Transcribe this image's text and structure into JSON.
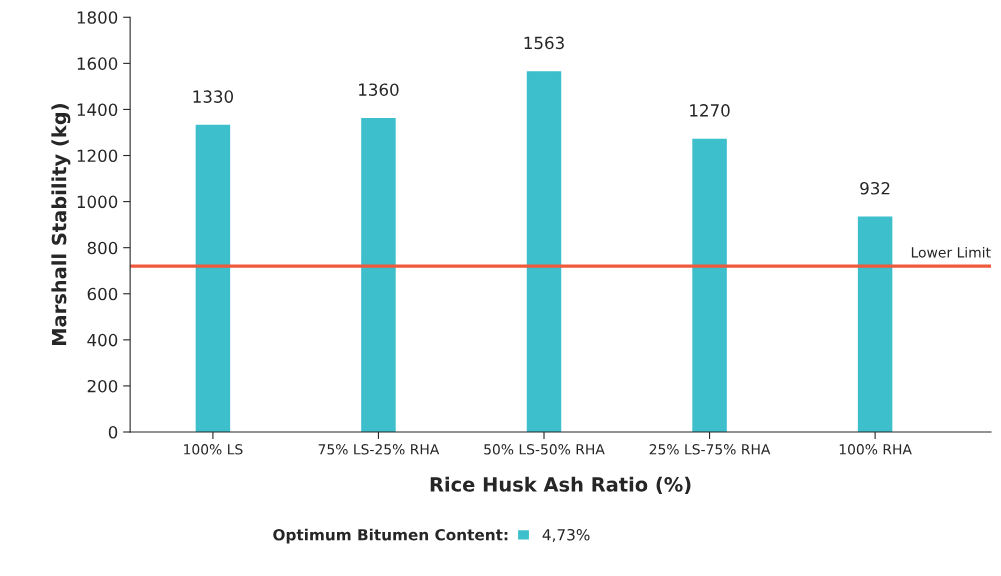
{
  "chart_data": {
    "type": "bar",
    "categories": [
      "100% LS",
      "75% LS-25% RHA",
      "50% LS-50% RHA",
      "25% LS-75% RHA",
      "100% RHA"
    ],
    "series": [
      {
        "name": "4,73%",
        "color": "#3dbfcc",
        "values": [
          1330,
          1360,
          1563,
          1270,
          932
        ]
      }
    ],
    "xlabel": "Rice Husk Ash Ratio (%)",
    "ylabel": "Marshall Stability (kg)",
    "legend_title": "Optimum Bitumen Content:",
    "legend": "bottom",
    "ylim": [
      0,
      1800
    ],
    "yticks": [
      0,
      200,
      400,
      600,
      800,
      1000,
      1200,
      1400,
      1600,
      1800
    ],
    "ref_lines": [
      {
        "axis": "y",
        "value": 720,
        "label": "Lower Limit",
        "color": "#f05a3c"
      }
    ],
    "data_labels": true,
    "grid": false
  }
}
